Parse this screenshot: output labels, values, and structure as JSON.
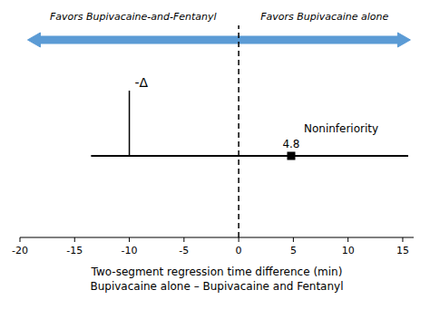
{
  "chart_data": {
    "type": "forest",
    "xlabel": [
      "Two-segment regression time difference (min)",
      "Bupivacaine alone – Bupivacaine and Fentanyl"
    ],
    "xlim": [
      -20,
      16
    ],
    "xticks": [
      -20,
      -15,
      -10,
      -5,
      0,
      5,
      10,
      15
    ],
    "color": "#000000",
    "estimate": 4.8,
    "ci": [
      -13.5,
      15.5
    ],
    "data_labels": true,
    "reference": 0,
    "margin": -10,
    "margin_label": "-Δ",
    "annotation": "Noninferiority",
    "arrows": [
      {
        "label": "Favors Bupivacaine-and-Fentanyl",
        "from": 0,
        "to": -19.3,
        "color": "#5b9bd5"
      },
      {
        "label": "Favors Bupivacaine alone",
        "from": 0,
        "to": 15.7,
        "color": "#5b9bd5"
      }
    ]
  }
}
